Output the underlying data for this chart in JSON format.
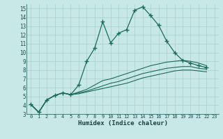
{
  "xlabel": "Humidex (Indice chaleur)",
  "bg_color": "#c8e8e8",
  "line_color": "#1a6b5a",
  "grid_color": "#a8d0cc",
  "xlim": [
    -0.5,
    23.5
  ],
  "ylim": [
    3,
    15.5
  ],
  "xticks": [
    0,
    1,
    2,
    3,
    4,
    5,
    6,
    7,
    8,
    9,
    10,
    11,
    12,
    13,
    14,
    15,
    16,
    17,
    18,
    19,
    20,
    21,
    22,
    23
  ],
  "yticks": [
    3,
    4,
    5,
    6,
    7,
    8,
    9,
    10,
    11,
    12,
    13,
    14,
    15
  ],
  "series_main": {
    "x": [
      0,
      1,
      2,
      3,
      4,
      5,
      6,
      7,
      8,
      9,
      10,
      11,
      12,
      13,
      14,
      15,
      16,
      17,
      18,
      19,
      20,
      21,
      22
    ],
    "y": [
      4.1,
      3.2,
      4.6,
      5.1,
      5.4,
      5.2,
      6.3,
      9.0,
      10.5,
      13.5,
      11.1,
      12.2,
      12.6,
      14.8,
      15.2,
      14.2,
      13.1,
      11.3,
      10.0,
      9.1,
      8.8,
      8.5,
      8.3
    ]
  },
  "series_smooth": [
    {
      "x": [
        0,
        1,
        2,
        3,
        4,
        5,
        6,
        7,
        8,
        9,
        10,
        11,
        12,
        13,
        14,
        15,
        16,
        17,
        18,
        19,
        20,
        21,
        22
      ],
      "y": [
        4.1,
        3.2,
        4.6,
        5.1,
        5.4,
        5.2,
        5.5,
        5.8,
        6.3,
        6.8,
        7.0,
        7.3,
        7.6,
        7.9,
        8.2,
        8.5,
        8.7,
        8.9,
        9.0,
        9.1,
        9.0,
        8.8,
        8.5
      ]
    },
    {
      "x": [
        0,
        1,
        2,
        3,
        4,
        5,
        6,
        7,
        8,
        9,
        10,
        11,
        12,
        13,
        14,
        15,
        16,
        17,
        18,
        19,
        20,
        21,
        22
      ],
      "y": [
        4.1,
        3.2,
        4.6,
        5.1,
        5.4,
        5.2,
        5.4,
        5.6,
        5.9,
        6.2,
        6.5,
        6.7,
        7.0,
        7.3,
        7.6,
        7.8,
        8.0,
        8.2,
        8.3,
        8.4,
        8.4,
        8.2,
        8.1
      ]
    },
    {
      "x": [
        0,
        1,
        2,
        3,
        4,
        5,
        6,
        7,
        8,
        9,
        10,
        11,
        12,
        13,
        14,
        15,
        16,
        17,
        18,
        19,
        20,
        21,
        22
      ],
      "y": [
        4.1,
        3.2,
        4.6,
        5.1,
        5.4,
        5.2,
        5.3,
        5.5,
        5.7,
        5.9,
        6.1,
        6.3,
        6.5,
        6.8,
        7.1,
        7.3,
        7.5,
        7.7,
        7.9,
        8.0,
        8.0,
        7.9,
        7.8
      ]
    }
  ]
}
